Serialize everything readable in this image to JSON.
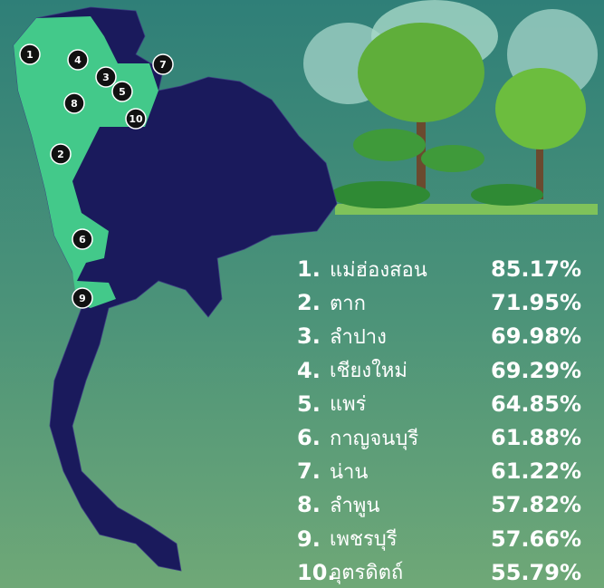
{
  "markers": [
    "1",
    "2",
    "3",
    "4",
    "5",
    "6",
    "7",
    "8",
    "9",
    "10"
  ],
  "ranking": [
    {
      "rank": "1.",
      "name": "แม่ฮ่องสอน",
      "value": "85.17%"
    },
    {
      "rank": "2.",
      "name": "ตาก",
      "value": "71.95%"
    },
    {
      "rank": "3.",
      "name": "ลำปาง",
      "value": "69.98%"
    },
    {
      "rank": "4.",
      "name": "เชียงใหม่",
      "value": "69.29%"
    },
    {
      "rank": "5.",
      "name": "แพร่",
      "value": "64.85%"
    },
    {
      "rank": "6.",
      "name": "กาญจนบุรี",
      "value": "61.88%"
    },
    {
      "rank": "7.",
      "name": "น่าน",
      "value": "61.22%"
    },
    {
      "rank": "8.",
      "name": "ลำพูน",
      "value": "57.82%"
    },
    {
      "rank": "9.",
      "name": "เพชรบุรี",
      "value": "57.66%"
    },
    {
      "rank": "10.",
      "name": "อุตรดิตถ์",
      "value": "55.79%"
    }
  ]
}
